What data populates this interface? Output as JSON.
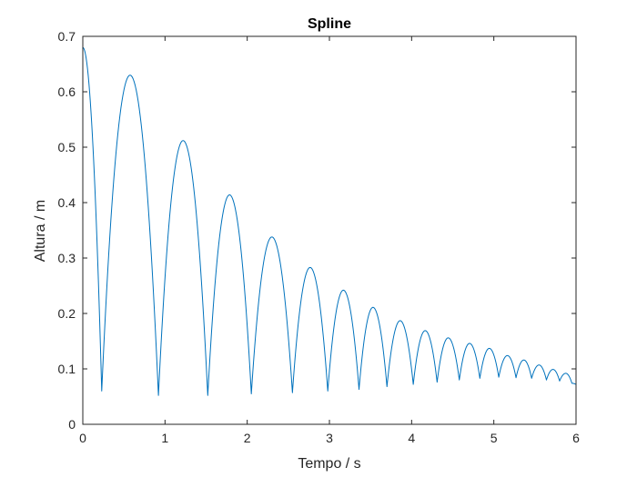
{
  "chart_data": {
    "type": "line",
    "title": "Spline",
    "xlabel": "Tempo / s",
    "ylabel": "Altura / m",
    "xlim": [
      0,
      6
    ],
    "ylim": [
      0,
      0.7
    ],
    "xticks": [
      0,
      1,
      2,
      3,
      4,
      5,
      6
    ],
    "yticks": [
      0,
      0.1,
      0.2,
      0.3,
      0.4,
      0.5,
      0.6,
      0.7
    ],
    "xtick_labels": [
      "0",
      "1",
      "2",
      "3",
      "4",
      "5",
      "6"
    ],
    "ytick_labels": [
      "0",
      "0.1",
      "0.2",
      "0.3",
      "0.4",
      "0.5",
      "0.6",
      "0.7"
    ],
    "grid": false,
    "box": true,
    "line_color": "#0072BD",
    "series": [
      {
        "x": [
          0,
          0.23,
          0.575,
          0.92,
          1.22,
          1.52,
          1.785,
          2.05,
          2.3,
          2.55,
          2.765,
          2.98,
          3.17,
          3.36,
          3.53,
          3.7,
          3.86,
          4.02,
          4.165,
          4.31,
          4.445,
          4.58,
          4.705,
          4.83,
          4.945,
          5.06,
          5.165,
          5.27,
          5.365,
          5.46,
          5.55,
          5.64,
          5.72,
          5.8,
          5.875,
          5.95,
          6.0
        ],
        "y": [
          0.68,
          0.06,
          0.63,
          0.052,
          0.512,
          0.052,
          0.414,
          0.055,
          0.338,
          0.057,
          0.283,
          0.06,
          0.242,
          0.063,
          0.211,
          0.068,
          0.187,
          0.072,
          0.169,
          0.076,
          0.156,
          0.08,
          0.146,
          0.083,
          0.137,
          0.085,
          0.124,
          0.084,
          0.116,
          0.083,
          0.107,
          0.08,
          0.099,
          0.078,
          0.092,
          0.074,
          0.072
        ]
      }
    ]
  }
}
